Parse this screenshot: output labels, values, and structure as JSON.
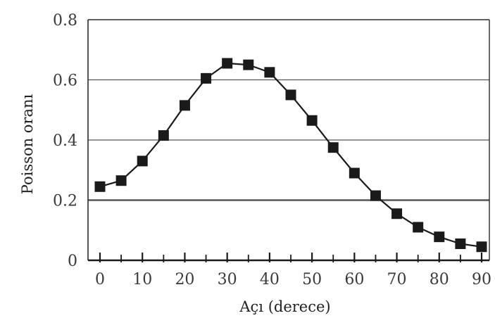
{
  "chart_data": {
    "type": "line",
    "title": "",
    "xlabel": "Açı (derece)",
    "ylabel": "Poisson oranı",
    "xlim": [
      0,
      90
    ],
    "ylim": [
      0,
      0.8
    ],
    "x_ticks": [
      0,
      10,
      20,
      30,
      40,
      50,
      60,
      70,
      80,
      90
    ],
    "x_tick_labels": [
      "0",
      "10",
      "20",
      "30",
      "40",
      "50",
      "60",
      "70",
      "80",
      "90"
    ],
    "y_ticks": [
      0,
      0.2,
      0.4,
      0.6,
      0.8
    ],
    "y_tick_labels": [
      "0",
      "0.2",
      "0.4",
      "0.6",
      "0.8"
    ],
    "grid": "horizontal",
    "legend": "none",
    "marker": "square",
    "line_color": "#1a1a1a",
    "grid_color": "#555555",
    "series": [
      {
        "x": [
          0,
          5,
          10,
          15,
          20,
          25,
          30,
          35,
          40,
          45,
          50,
          55,
          60,
          65,
          70,
          75,
          80,
          85,
          90
        ],
        "y": [
          0.245,
          0.265,
          0.33,
          0.415,
          0.515,
          0.605,
          0.655,
          0.65,
          0.625,
          0.55,
          0.465,
          0.375,
          0.29,
          0.215,
          0.155,
          0.11,
          0.078,
          0.055,
          0.045
        ]
      }
    ]
  }
}
